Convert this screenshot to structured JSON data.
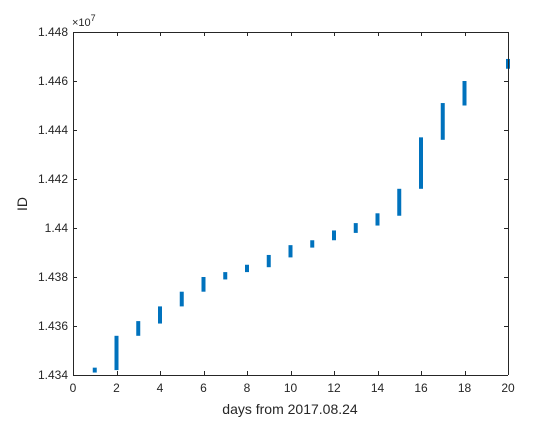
{
  "chart_data": {
    "type": "scatter",
    "title": "",
    "xlabel": "days from 2017.08.24",
    "ylabel": "ID",
    "xlim": [
      0,
      20
    ],
    "ylim": [
      1.434,
      1.448
    ],
    "y_exponent_label": "×10",
    "y_exponent_power": "7",
    "x_ticks": [
      "0",
      "2",
      "4",
      "6",
      "8",
      "10",
      "12",
      "14",
      "16",
      "18",
      "20"
    ],
    "y_ticks": [
      "1.434",
      "1.436",
      "1.438",
      "1.44",
      "1.442",
      "1.444",
      "1.446",
      "1.448"
    ],
    "grid": false,
    "legend": "none",
    "series_color": "#0072BD",
    "x_tick_values": [
      0,
      2,
      4,
      6,
      8,
      10,
      12,
      14,
      16,
      18,
      20
    ],
    "y_tick_values": [
      1.434,
      1.436,
      1.438,
      1.44,
      1.442,
      1.444,
      1.446,
      1.448
    ],
    "segments": [
      {
        "x": 1,
        "y_min": 1.4341,
        "y_max": 1.4343
      },
      {
        "x": 2,
        "y_min": 1.4342,
        "y_max": 1.4356
      },
      {
        "x": 3,
        "y_min": 1.4356,
        "y_max": 1.4362
      },
      {
        "x": 4,
        "y_min": 1.4361,
        "y_max": 1.4368
      },
      {
        "x": 5,
        "y_min": 1.4368,
        "y_max": 1.4374
      },
      {
        "x": 6,
        "y_min": 1.4374,
        "y_max": 1.438
      },
      {
        "x": 7,
        "y_min": 1.4379,
        "y_max": 1.4382
      },
      {
        "x": 8,
        "y_min": 1.4382,
        "y_max": 1.4385
      },
      {
        "x": 9,
        "y_min": 1.4384,
        "y_max": 1.4389
      },
      {
        "x": 10,
        "y_min": 1.4388,
        "y_max": 1.4393
      },
      {
        "x": 11,
        "y_min": 1.4392,
        "y_max": 1.4395
      },
      {
        "x": 12,
        "y_min": 1.4395,
        "y_max": 1.4399
      },
      {
        "x": 13,
        "y_min": 1.4398,
        "y_max": 1.4402
      },
      {
        "x": 14,
        "y_min": 1.4401,
        "y_max": 1.4406
      },
      {
        "x": 15,
        "y_min": 1.4405,
        "y_max": 1.4416
      },
      {
        "x": 16,
        "y_min": 1.4416,
        "y_max": 1.4437
      },
      {
        "x": 17,
        "y_min": 1.4436,
        "y_max": 1.4451
      },
      {
        "x": 18,
        "y_min": 1.445,
        "y_max": 1.446
      },
      {
        "x": 20,
        "y_min": 1.4465,
        "y_max": 1.4469
      }
    ]
  }
}
